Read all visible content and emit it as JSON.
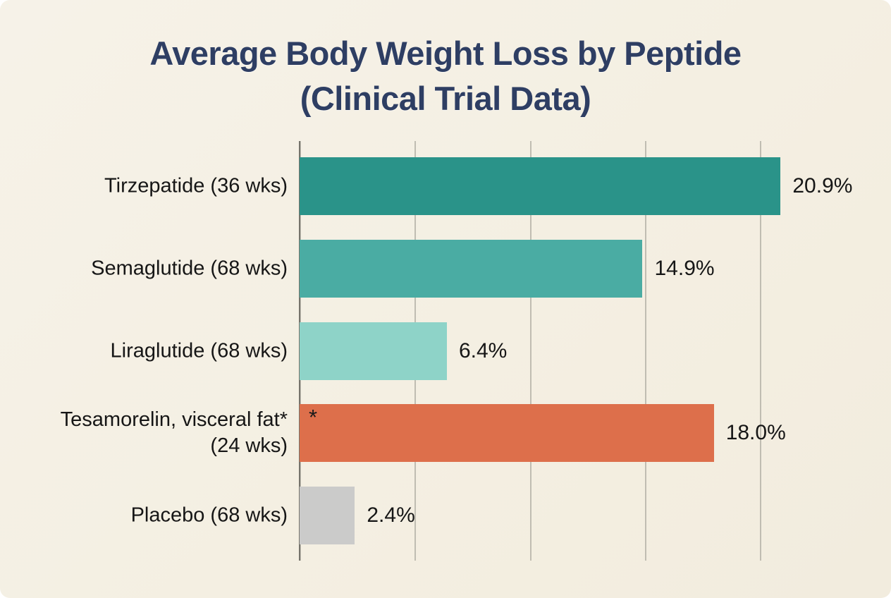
{
  "title": {
    "line1": "Average Body Weight Loss by Peptide",
    "line2": "(Clinical Trial Data)"
  },
  "colors": {
    "background": "#f4efe2",
    "title_text": "#2e3e63",
    "label_text": "#161616",
    "axis_line": "#75736b",
    "gridline": "#c0bdb2"
  },
  "chart_data": {
    "type": "bar",
    "orientation": "horizontal",
    "title": "Average Body Weight Loss by Peptide (Clinical Trial Data)",
    "xlabel": "",
    "ylabel": "",
    "xlim": [
      0,
      24.4
    ],
    "gridlines_pct": [
      0,
      5,
      10,
      15,
      20
    ],
    "grid": true,
    "legend": false,
    "value_suffix": "%",
    "categories": [
      "Tirzepatide (36 wks)",
      "Semaglutide (68 wks)",
      "Liraglutide (68 wks)",
      "Tesamorelin, visceral fat* (24 wks)",
      "Placebo (68 wks)"
    ],
    "values": [
      20.9,
      14.9,
      6.4,
      18.0,
      2.4
    ],
    "rows": [
      {
        "label_lines": [
          "Tirzepatide (36 wks)"
        ],
        "value": 20.9,
        "value_label": "20.9%",
        "color": "#2a9389"
      },
      {
        "label_lines": [
          "Semaglutide (68 wks)"
        ],
        "value": 14.9,
        "value_label": "14.9%",
        "color": "#4aaca3"
      },
      {
        "label_lines": [
          "Liraglutide (68 wks)"
        ],
        "value": 6.4,
        "value_label": "6.4%",
        "color": "#8ed3c8"
      },
      {
        "label_lines": [
          "Tesamorelin, visceral fat*",
          "(24 wks)"
        ],
        "value": 18.0,
        "value_label": "18.0%",
        "color": "#dd6f4b",
        "bar_annotation": "*"
      },
      {
        "label_lines": [
          "Placebo (68 wks)"
        ],
        "value": 2.4,
        "value_label": "2.4%",
        "color": "#cbcbca"
      }
    ]
  }
}
